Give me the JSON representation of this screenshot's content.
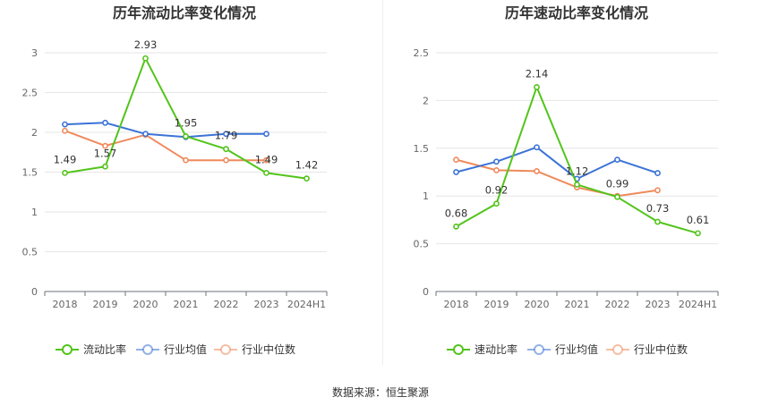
{
  "source_text": "数据来源：恒生聚源",
  "chart_data": [
    {
      "type": "line",
      "title": "历年流动比率变化情况",
      "xlabel": "",
      "ylabel": "",
      "categories": [
        "2018",
        "2019",
        "2020",
        "2021",
        "2022",
        "2023",
        "2024H1"
      ],
      "ylim": [
        0,
        3
      ],
      "yticks": [
        0,
        0.5,
        1,
        1.5,
        2,
        2.5,
        3
      ],
      "ytick_labels": [
        "0",
        "0.5",
        "1",
        "1.5",
        "2",
        "2.5",
        "3"
      ],
      "grid": true,
      "legend": "bottom",
      "series": [
        {
          "name": "流动比率",
          "color": "#52c41a",
          "labeled": true,
          "values": [
            1.49,
            1.57,
            2.93,
            1.95,
            1.79,
            1.49,
            1.42
          ]
        },
        {
          "name": "行业均值",
          "color": "#3b73d6",
          "labeled": false,
          "values": [
            2.1,
            2.12,
            1.98,
            1.94,
            1.98,
            1.98,
            null
          ]
        },
        {
          "name": "行业中位数",
          "color": "#ef8a5c",
          "labeled": false,
          "values": [
            2.02,
            1.83,
            1.97,
            1.65,
            1.65,
            1.65,
            null
          ]
        }
      ]
    },
    {
      "type": "line",
      "title": "历年速动比率变化情况",
      "xlabel": "",
      "ylabel": "",
      "categories": [
        "2018",
        "2019",
        "2020",
        "2021",
        "2022",
        "2023",
        "2024H1"
      ],
      "ylim": [
        0,
        2.5
      ],
      "yticks": [
        0,
        0.5,
        1,
        1.5,
        2,
        2.5
      ],
      "ytick_labels": [
        "0",
        "0.5",
        "1",
        "1.5",
        "2",
        "2.5"
      ],
      "grid": true,
      "legend": "bottom",
      "series": [
        {
          "name": "速动比率",
          "color": "#52c41a",
          "labeled": true,
          "values": [
            0.68,
            0.92,
            2.14,
            1.12,
            0.99,
            0.73,
            0.61
          ]
        },
        {
          "name": "行业均值",
          "color": "#3b73d6",
          "labeled": false,
          "values": [
            1.25,
            1.36,
            1.51,
            1.18,
            1.38,
            1.24,
            null
          ]
        },
        {
          "name": "行业中位数",
          "color": "#ef8a5c",
          "labeled": false,
          "values": [
            1.38,
            1.27,
            1.26,
            1.09,
            1.0,
            1.06,
            null
          ]
        }
      ]
    }
  ]
}
